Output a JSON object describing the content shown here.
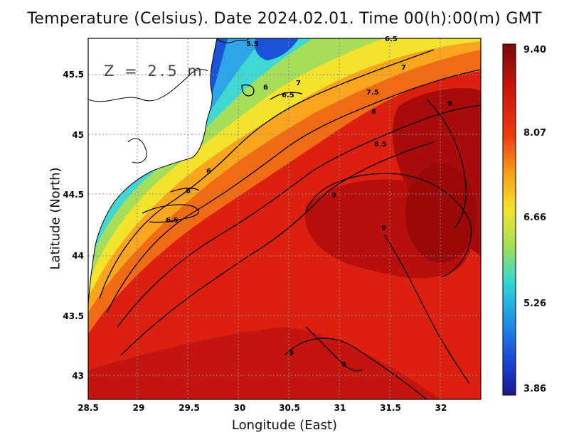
{
  "title": "Temperature (Celsius). Date 2024.02.01. Time 00(h):00(m) GMT",
  "depth_label": "Z = 2.5 m",
  "x_axis": {
    "label": "Longitude (East)",
    "ticks": [
      "28.5",
      "29",
      "29.5",
      "30",
      "30.5",
      "31",
      "31.5",
      "32"
    ]
  },
  "y_axis": {
    "label": "Latitude (North)",
    "ticks": [
      "45.5",
      "45",
      "44.5",
      "44",
      "43.5",
      "43"
    ]
  },
  "colorbar": {
    "labels": [
      "9.40",
      "8.07",
      "6.66",
      "5.26",
      "3.86"
    ],
    "min": 3.86,
    "max": 9.4
  },
  "contour_labels": [
    "5.5",
    "6",
    "6.5",
    "7",
    "7.5",
    "8",
    "8.5",
    "9",
    "9",
    "9",
    "9",
    "9",
    "6",
    "6",
    "6.5",
    "6.5"
  ],
  "colors": {
    "land": "#ffffff",
    "cold": "#1a3fd6",
    "warm": "#d4160c",
    "hot": "#a50a0a"
  }
}
